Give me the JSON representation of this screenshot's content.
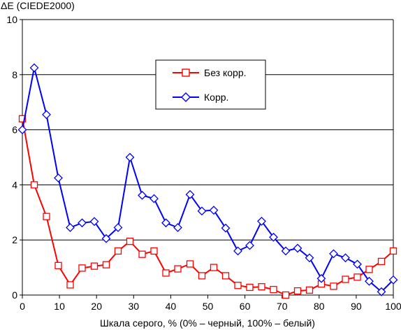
{
  "chart_data": {
    "type": "line",
    "title": "ΔE (CIEDE2000)",
    "xlabel": "Шкала серого, % (0% – черный, 100% – белый)",
    "ylabel": "",
    "xlim": [
      0,
      100
    ],
    "ylim": [
      0,
      10
    ],
    "x_ticks": [
      0,
      10,
      20,
      30,
      40,
      50,
      60,
      70,
      80,
      90,
      100
    ],
    "y_ticks": [
      0,
      2,
      4,
      6,
      8,
      10
    ],
    "grid": "horizontal",
    "legend_position": "top-right",
    "x": [
      0,
      3.2,
      6.5,
      9.7,
      12.9,
      16.1,
      19.4,
      22.6,
      25.8,
      29.0,
      32.3,
      35.5,
      38.7,
      41.9,
      45.2,
      48.4,
      51.6,
      54.8,
      58.1,
      61.3,
      64.5,
      67.7,
      71.0,
      74.2,
      77.4,
      80.6,
      83.9,
      87.1,
      90.3,
      93.5,
      96.8,
      100
    ],
    "series": [
      {
        "name": "Без корр.",
        "color": "#ff0000",
        "marker": "square",
        "values": [
          6.4,
          4.0,
          2.85,
          1.07,
          0.37,
          0.98,
          1.05,
          1.1,
          1.6,
          1.95,
          1.48,
          1.6,
          0.8,
          0.95,
          1.13,
          0.7,
          1.0,
          0.7,
          0.35,
          0.28,
          0.3,
          0.2,
          0.0,
          0.15,
          0.18,
          0.4,
          0.32,
          0.57,
          0.65,
          0.93,
          1.22,
          1.6
        ]
      },
      {
        "name": "Корр.",
        "color": "#0000ff",
        "marker": "diamond",
        "values": [
          6.0,
          8.25,
          6.55,
          4.25,
          2.45,
          2.62,
          2.67,
          2.05,
          2.45,
          5.0,
          3.62,
          3.5,
          2.62,
          2.45,
          3.65,
          3.05,
          3.08,
          2.43,
          1.6,
          1.8,
          2.68,
          2.1,
          1.6,
          1.7,
          1.35,
          0.6,
          1.5,
          1.35,
          1.12,
          0.5,
          0.12,
          0.55
        ]
      }
    ]
  }
}
